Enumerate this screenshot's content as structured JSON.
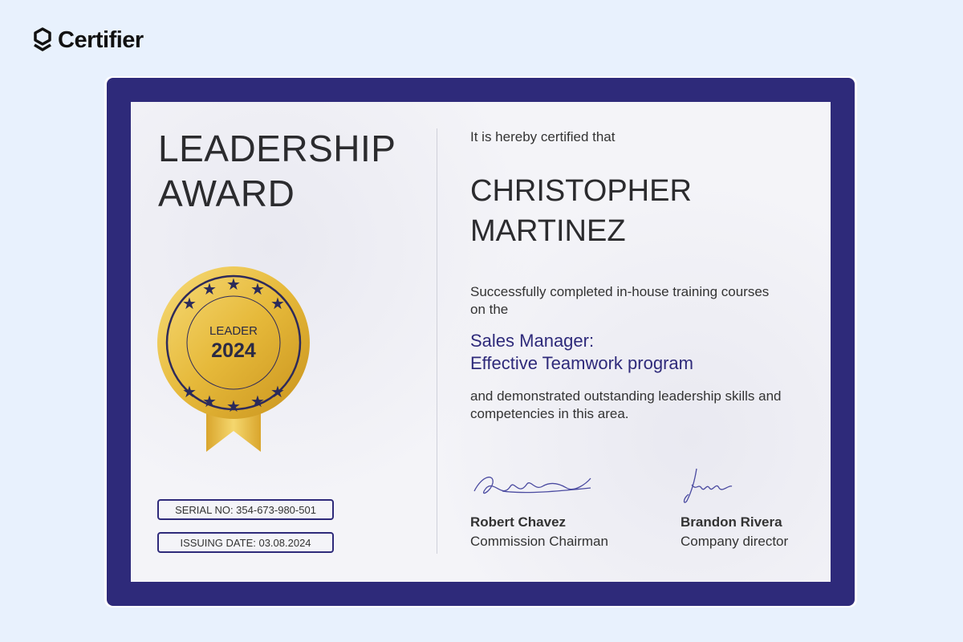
{
  "brand": {
    "name": "Certifier"
  },
  "certificate": {
    "title_line1": "LEADERSHIP",
    "title_line2": "AWARD",
    "medal": {
      "top": "LEADER",
      "year": "2024"
    },
    "serial": "SERIAL NO: 354-673-980-501",
    "issuing_date": "ISSUING DATE: 03.08.2024",
    "intro": "It is hereby certified that",
    "recipient_line1": "CHRISTOPHER",
    "recipient_line2": "MARTINEZ",
    "completion_text": "Successfully completed in-house training courses on the",
    "course_line1": "Sales Manager:",
    "course_line2": "Effective Teamwork program",
    "closing_text": "and demonstrated outstanding leadership skills and competencies in this area.",
    "signatories": [
      {
        "name": "Robert Chavez",
        "role": "Commission Chairman"
      },
      {
        "name": "Brandon Rivera",
        "role": "Company director"
      }
    ]
  },
  "colors": {
    "frame": "#2e2a7a",
    "gold": "#e6b93a",
    "background": "#e8f1fd"
  }
}
